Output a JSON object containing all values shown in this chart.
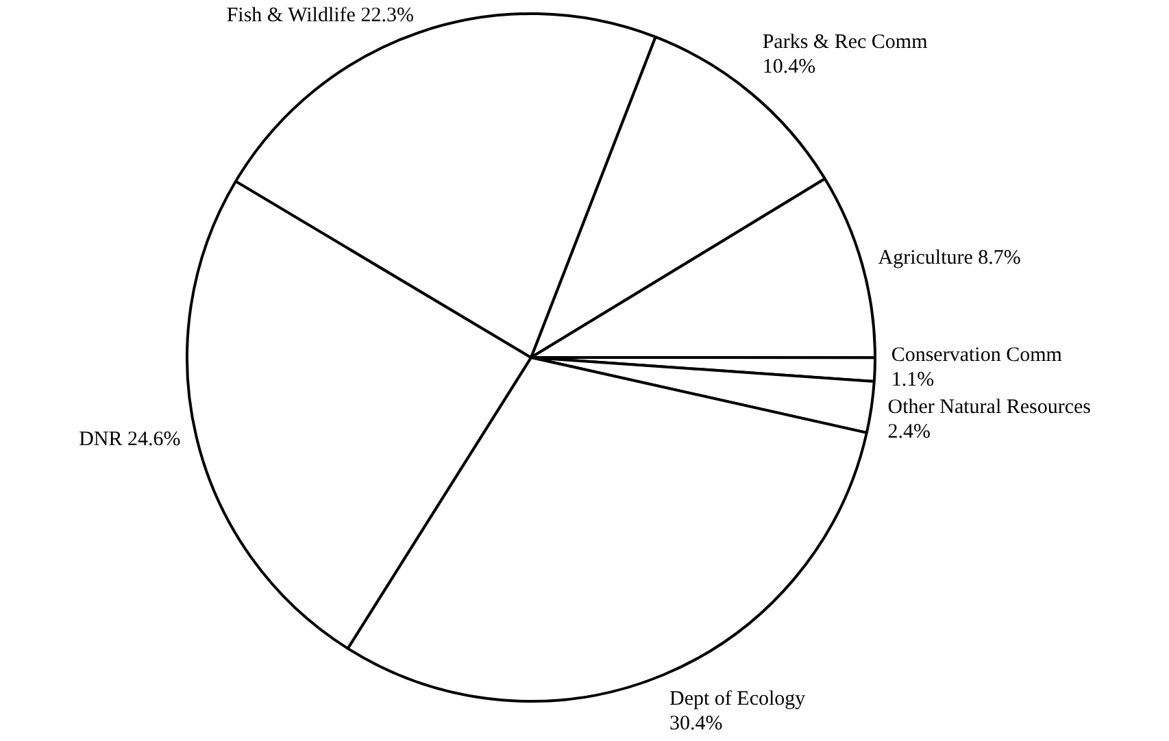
{
  "chart_data": {
    "type": "pie",
    "categories": [
      "Parks & Rec Comm",
      "Agriculture",
      "Conservation Comm",
      "Other Natural Resources",
      "Dept of Ecology",
      "DNR",
      "Fish & Wildlife"
    ],
    "values": [
      10.4,
      8.7,
      1.1,
      2.4,
      30.4,
      24.6,
      22.3
    ],
    "colors": [
      "#ffffff",
      "#ffffff",
      "#ffffff",
      "#ffffff",
      "#ffffff",
      "#ffffff",
      "#ffffff"
    ],
    "value_labels": [
      "10.4%",
      "8.7%",
      "1.1%",
      "2.4%",
      "30.4%",
      "24.6%",
      "22.3%"
    ],
    "legend": false
  }
}
